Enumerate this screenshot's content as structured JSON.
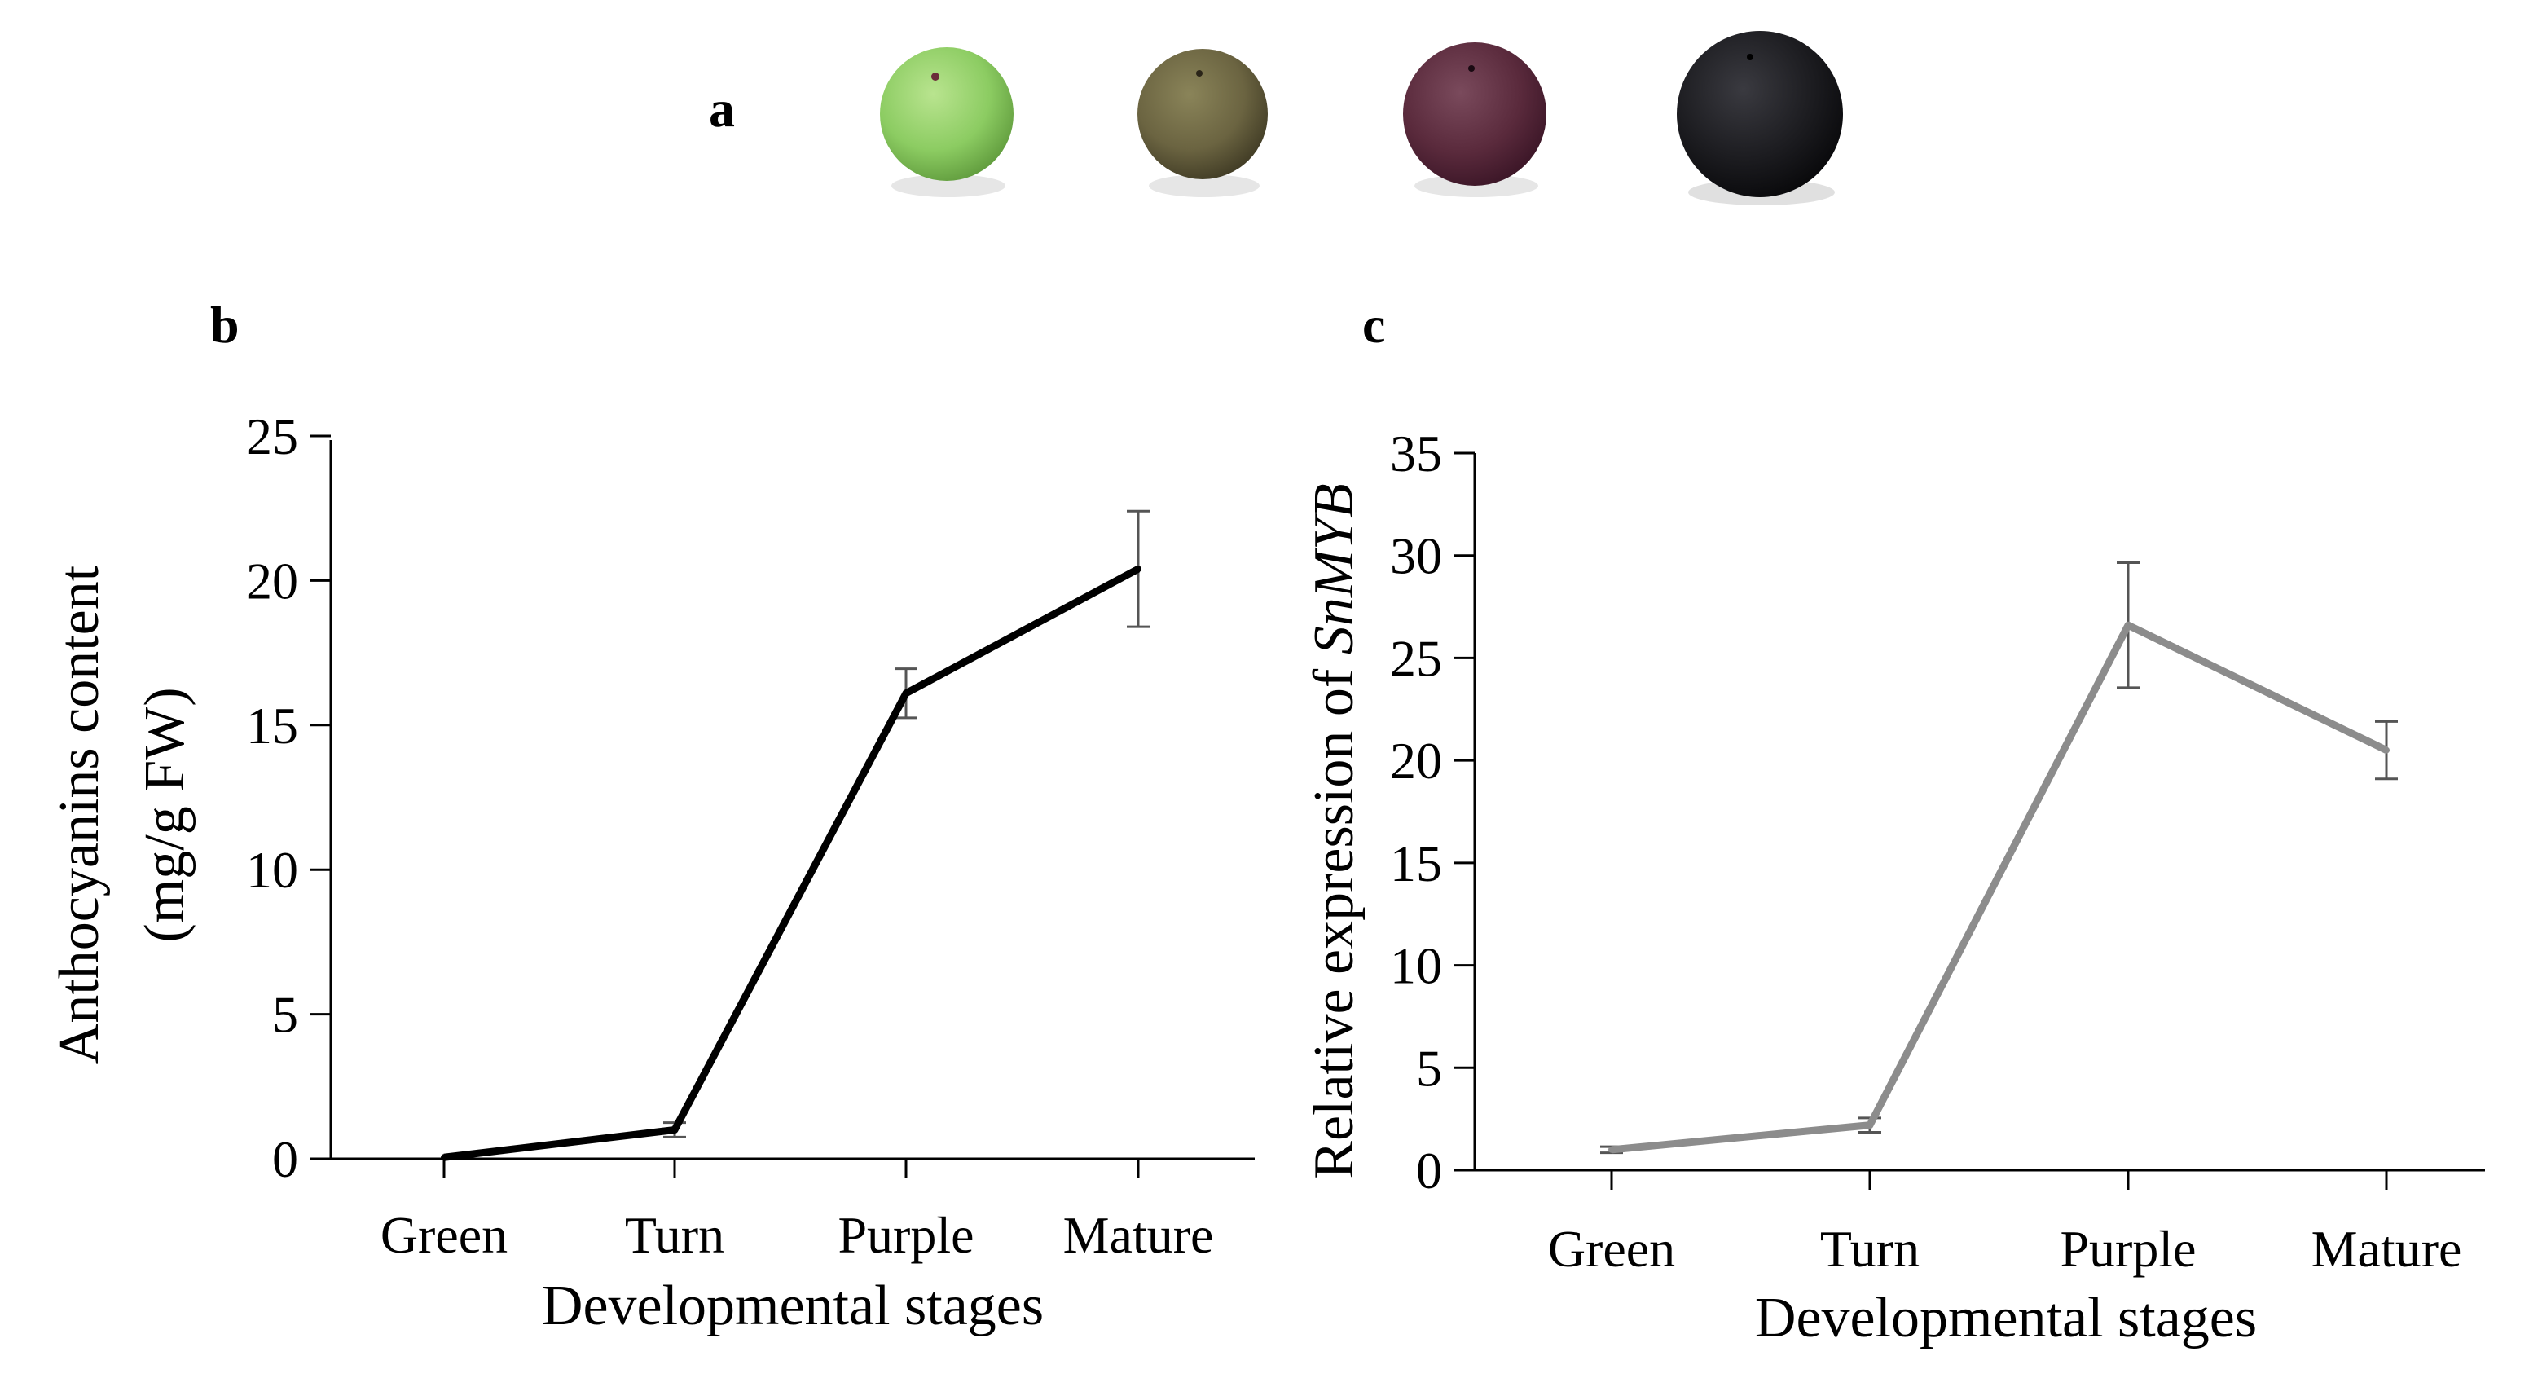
{
  "panels": {
    "a": "a",
    "b": "b",
    "c": "c"
  },
  "fruit_photos": [
    {
      "name": "green-berry",
      "color": "#8ccc62",
      "highlight": "#b9e48f",
      "shade": "#5f9a3c"
    },
    {
      "name": "turn-berry",
      "color": "#6b6441",
      "highlight": "#8a8459",
      "shade": "#3f3a24"
    },
    {
      "name": "purple-berry",
      "color": "#5a2a3c",
      "highlight": "#7a4a5c",
      "shade": "#3a1526"
    },
    {
      "name": "mature-berry",
      "color": "#1c1c20",
      "highlight": "#3a3a40",
      "shade": "#08080a"
    }
  ],
  "chart_data": [
    {
      "type": "line",
      "panel": "b",
      "categories": [
        "Green",
        "Turn",
        "Purple",
        "Mature"
      ],
      "values": [
        0.05,
        1.0,
        16.1,
        20.4
      ],
      "errors": [
        0,
        0.25,
        0.85,
        2.0
      ],
      "xlabel": "Developmental stages",
      "ylabel_line1": "Anthocyanins content",
      "ylabel_line2": "(mg/g FW)",
      "ylim": [
        0,
        25
      ],
      "yticks": [
        0,
        5,
        10,
        15,
        20,
        25
      ],
      "line_color": "#000000"
    },
    {
      "type": "line",
      "panel": "c",
      "categories": [
        "Green",
        "Turn",
        "Purple",
        "Mature"
      ],
      "values": [
        1.0,
        2.2,
        26.6,
        20.5
      ],
      "errors": [
        0.15,
        0.35,
        3.05,
        1.4
      ],
      "xlabel": "Developmental stages",
      "ylabel_prefix": "Relative expression of ",
      "ylabel_gene": "SnMYB",
      "ylim": [
        0,
        35
      ],
      "yticks": [
        0,
        5,
        10,
        15,
        20,
        25,
        30,
        35
      ],
      "line_color": "#8c8c8c"
    }
  ]
}
